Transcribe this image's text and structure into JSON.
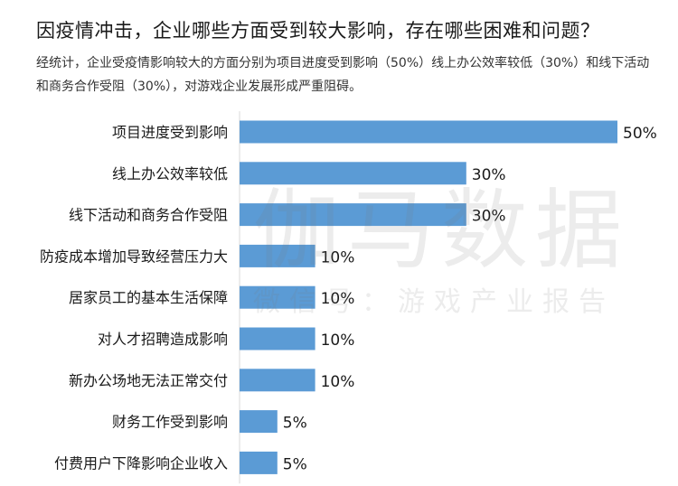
{
  "header": {
    "title": "因疫情冲击，企业哪些方面受到较大影响，存在哪些困难和问题？",
    "subtitle": "经统计，企业受疫情影响较大的方面分别为项目进度受到影响（50%）线上办公效率较低（30%）和线下活动和商务合作受阻（30%），对游戏企业发展形成严重阻碍。"
  },
  "watermark": {
    "main": "伽马数据",
    "sub": "微信号：游戏产业报告"
  },
  "colors": {
    "bar": "#5b9bd5",
    "text": "#1a1a1a"
  },
  "chart_data": {
    "type": "bar",
    "orientation": "horizontal",
    "categories": [
      "项目进度受到影响",
      "线上办公效率较低",
      "线下活动和商务合作受阻",
      "防疫成本增加导致经营压力大",
      "居家员工的基本生活保障",
      "对人才招聘造成影响",
      "新办公场地无法正常交付",
      "财务工作受到影响",
      "付费用户下降影响企业收入"
    ],
    "values": [
      50,
      30,
      30,
      10,
      10,
      10,
      10,
      5,
      5
    ],
    "value_labels": [
      "50%",
      "30%",
      "30%",
      "10%",
      "10%",
      "10%",
      "10%",
      "5%",
      "5%"
    ],
    "unit": "%",
    "xlim": [
      0,
      50
    ]
  }
}
